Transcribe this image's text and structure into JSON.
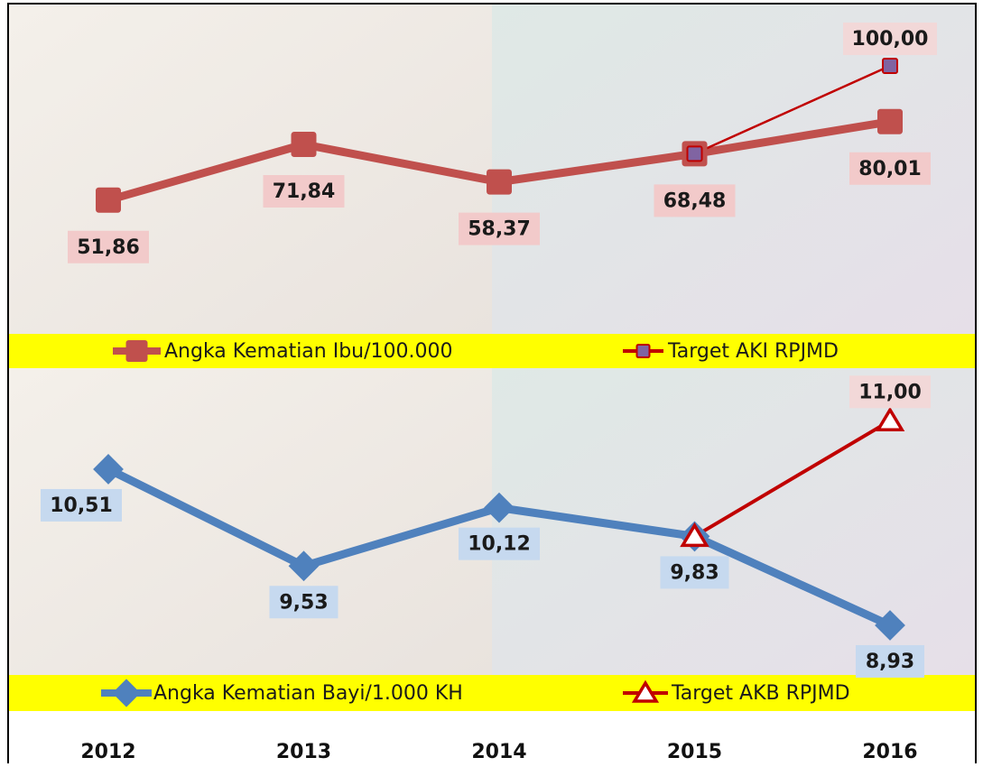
{
  "chart_data": [
    {
      "type": "line",
      "series": [
        {
          "name": "Angka Kematian Ibu/100.000",
          "color": "#c0504d",
          "marker": "square",
          "marker_color": "#c0504d",
          "values": [
            51.86,
            71.84,
            58.37,
            68.48,
            80.01
          ],
          "value_labels": [
            "51,86",
            "71,84",
            "58,37",
            "68,48",
            "80,01"
          ]
        },
        {
          "name": "Target AKI RPJMD",
          "color": "#c00000",
          "marker": "square",
          "marker_color": "#8064a2",
          "values": [
            null,
            null,
            null,
            68.48,
            100
          ],
          "value_labels": [
            null,
            null,
            null,
            null,
            "100,00"
          ]
        }
      ]
    },
    {
      "type": "line",
      "categories": [
        "2012",
        "2013",
        "2014",
        "2015",
        "2016"
      ],
      "series": [
        {
          "name": "Angka Kematian Bayi/1.000 KH",
          "color": "#4f81bd",
          "marker": "diamond",
          "marker_color": "#4f81bd",
          "values": [
            10.51,
            9.53,
            10.12,
            9.83,
            8.93
          ],
          "value_labels": [
            "10,51",
            "9,53",
            "10,12",
            "9,83",
            "8,93"
          ]
        },
        {
          "name": "Target AKB RPJMD",
          "color": "#c00000",
          "marker": "triangle",
          "marker_color": "#ffffff",
          "values": [
            null,
            null,
            null,
            9.83,
            11.0
          ],
          "value_labels": [
            null,
            null,
            null,
            null,
            "11,00"
          ]
        }
      ]
    }
  ]
}
